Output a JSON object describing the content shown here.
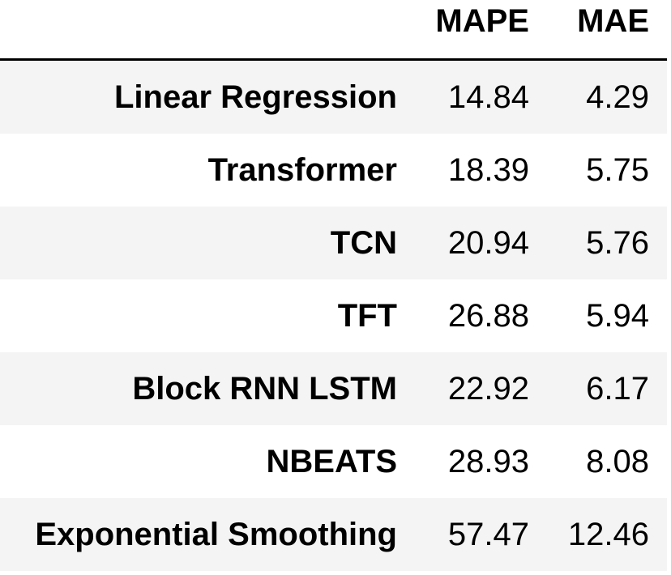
{
  "table": {
    "columns": {
      "mape": "MAPE",
      "mae": "MAE"
    },
    "rows": [
      {
        "model": "Linear Regression",
        "mape": "14.84",
        "mae": "4.29"
      },
      {
        "model": "Transformer",
        "mape": "18.39",
        "mae": "5.75"
      },
      {
        "model": "TCN",
        "mape": "20.94",
        "mae": "5.76"
      },
      {
        "model": "TFT",
        "mape": "26.88",
        "mae": "5.94"
      },
      {
        "model": "Block RNN LSTM",
        "mape": "22.92",
        "mae": "6.17"
      },
      {
        "model": "NBEATS",
        "mape": "28.93",
        "mae": "8.08"
      },
      {
        "model": "Exponential Smoothing",
        "mape": "57.47",
        "mae": "12.46"
      }
    ]
  }
}
